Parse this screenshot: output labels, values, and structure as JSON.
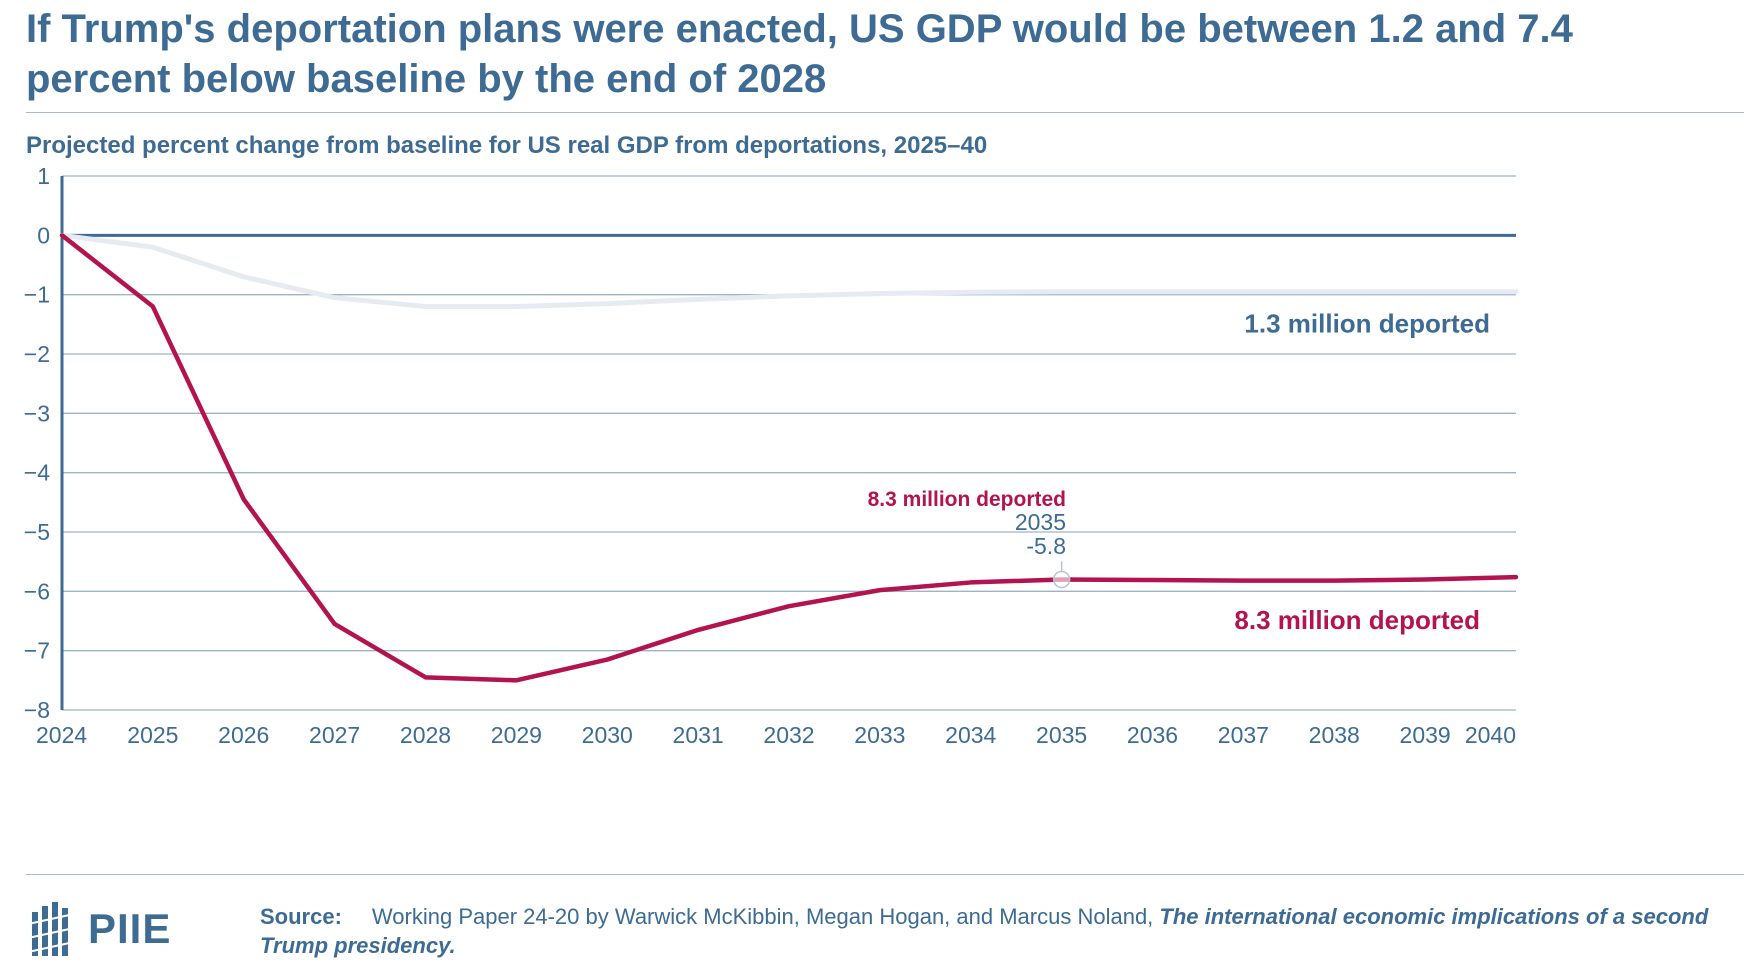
{
  "title": "If Trump's deportation plans were enacted, US GDP would be between 1.2 and 7.4 percent below baseline by the end of 2028",
  "subtitle": "Projected percent change from baseline for US real GDP from deportations, 2025–40",
  "colors": {
    "brand_blue": "#3d6b93",
    "series_low": "#e6ebf2",
    "series_high": "#b3134f",
    "grid": "#9cb3c8"
  },
  "chart_data": {
    "type": "line",
    "x": [
      2024,
      2025,
      2026,
      2027,
      2028,
      2029,
      2030,
      2031,
      2032,
      2033,
      2034,
      2035,
      2036,
      2037,
      2038,
      2039,
      2040
    ],
    "xlim": [
      2024,
      2040
    ],
    "ylim": [
      -8,
      1
    ],
    "y_ticks": [
      "1",
      "0",
      "−1",
      "−2",
      "−3",
      "−4",
      "−5",
      "−6",
      "−7",
      "−8"
    ],
    "x_ticks": [
      "2024",
      "2025",
      "2026",
      "2027",
      "2028",
      "2029",
      "2030",
      "2031",
      "2032",
      "2033",
      "2034",
      "2035",
      "2036",
      "2037",
      "2038",
      "2039",
      "2040"
    ],
    "grid": true,
    "series": [
      {
        "name": "1.3 million deported",
        "color": "#e6ebf2",
        "values": [
          0,
          -0.2,
          -0.7,
          -1.05,
          -1.2,
          -1.2,
          -1.15,
          -1.08,
          -1.02,
          -0.98,
          -0.96,
          -0.95,
          -0.95,
          -0.95,
          -0.95,
          -0.95,
          -0.95
        ]
      },
      {
        "name": "8.3 million deported",
        "color": "#b3134f",
        "values": [
          0,
          -1.2,
          -4.45,
          -6.55,
          -7.45,
          -7.5,
          -7.15,
          -6.65,
          -6.25,
          -5.98,
          -5.85,
          -5.8,
          -5.81,
          -5.82,
          -5.82,
          -5.8,
          -5.76
        ]
      }
    ],
    "annotation": {
      "series_label": "8.3 million deported",
      "x_label": "2035",
      "y_label": "-5.8",
      "x": 2035,
      "y": -5.8
    }
  },
  "footer": {
    "logo_text": "PIIE",
    "source_label": "Source:",
    "source_text": "Working Paper 24-20 by Warwick McKibbin, Megan Hogan, and Marcus Noland, ",
    "source_title": "The international economic implications of a second Trump presidency."
  }
}
